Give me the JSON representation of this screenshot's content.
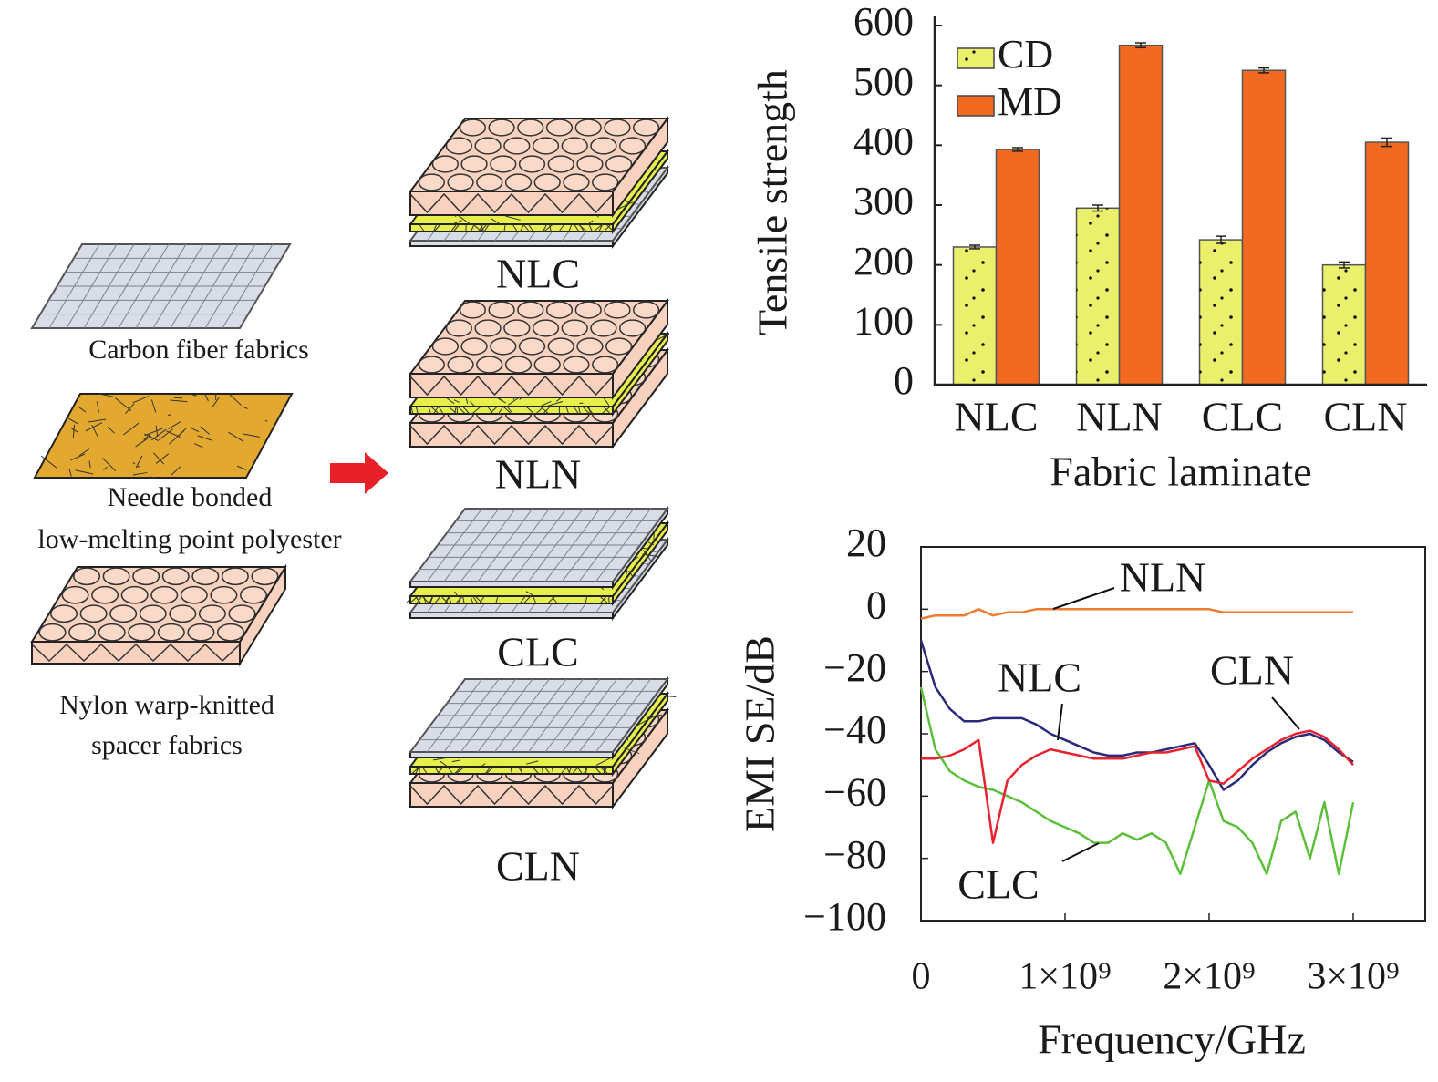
{
  "diagram": {
    "materials": [
      [
        "Carbon fiber fabrics"
      ],
      [
        "Needle bonded",
        "low-melting point polyester"
      ],
      [
        "Nylon warp-knitted",
        "spacer fabrics"
      ]
    ],
    "laminates": [
      "NLC",
      "NLN",
      "CLC",
      "CLN"
    ]
  },
  "chart_data": [
    {
      "type": "bar",
      "y_label": "Tensile strength",
      "x_label": "Fabric laminate",
      "categories": [
        "NLC",
        "NLN",
        "CLC",
        "CLN"
      ],
      "series": [
        {
          "name": "CD",
          "color": "#eaf06c",
          "values": [
            230,
            295,
            242,
            200
          ],
          "errors": [
            3,
            5,
            6,
            5
          ]
        },
        {
          "name": "MD",
          "color": "#f26a21",
          "values": [
            393,
            567,
            525,
            405
          ],
          "errors": [
            3,
            4,
            4,
            7
          ]
        }
      ],
      "ylim": [
        0,
        600
      ],
      "yticks": [
        0,
        100,
        200,
        300,
        400,
        500,
        600
      ],
      "legend": "upper left"
    },
    {
      "type": "line",
      "y_label": "EMI SE/dB",
      "x_label": "Frequency/GHz",
      "x": [
        0,
        100000000,
        200000000,
        300000000,
        400000000,
        500000000,
        600000000,
        700000000,
        800000000,
        900000000,
        1000000000,
        1100000000,
        1200000000,
        1300000000,
        1400000000,
        1500000000,
        1600000000,
        1700000000,
        1800000000,
        1900000000,
        2000000000,
        2100000000,
        2200000000,
        2300000000,
        2400000000,
        2500000000,
        2600000000,
        2700000000,
        2800000000,
        2900000000,
        3000000000
      ],
      "series": [
        {
          "name": "NLN",
          "color": "#f07a30",
          "values": [
            -3,
            -2,
            -2,
            -2,
            0,
            -2,
            -1,
            -1,
            0,
            0,
            0,
            0,
            0,
            0,
            0,
            0,
            0,
            0,
            0,
            0,
            0,
            -1,
            -1,
            -1,
            -1,
            -1,
            -1,
            -1,
            -1,
            -1,
            -1
          ]
        },
        {
          "name": "NLC",
          "color": "#e8222e",
          "values": [
            -48,
            -48,
            -47,
            -45,
            -42,
            -75,
            -55,
            -50,
            -47,
            -45,
            -46,
            -47,
            -48,
            -48,
            -48,
            -47,
            -46,
            -46,
            -45,
            -44,
            -55,
            -56,
            -52,
            -48,
            -45,
            -42,
            -40,
            -39,
            -41,
            -45,
            -50
          ]
        },
        {
          "name": "CLN",
          "color": "#2a2a7a",
          "values": [
            -10,
            -25,
            -32,
            -36,
            -36,
            -35,
            -35,
            -35,
            -37,
            -40,
            -42,
            -44,
            -46,
            -47,
            -47,
            -46,
            -46,
            -45,
            -44,
            -43,
            -50,
            -58,
            -55,
            -50,
            -46,
            -43,
            -41,
            -40,
            -42,
            -46,
            -49
          ]
        },
        {
          "name": "CLC",
          "color": "#5cbf3a",
          "values": [
            -25,
            -45,
            -52,
            -55,
            -57,
            -58,
            -60,
            -62,
            -65,
            -68,
            -70,
            -72,
            -75,
            -75,
            -72,
            -74,
            -72,
            -75,
            -85,
            -70,
            -55,
            -68,
            -70,
            -75,
            -85,
            -68,
            -65,
            -80,
            -62,
            -85,
            -62
          ]
        }
      ],
      "xlim": [
        0,
        3500000000
      ],
      "xticks": [
        0,
        {
          "value": 1000000000,
          "label": "1×10⁹"
        },
        {
          "value": 2000000000,
          "label": "2×10⁹"
        },
        {
          "value": 3000000000,
          "label": "3×10⁹"
        }
      ],
      "ylim": [
        -100,
        20
      ],
      "yticks": [
        {
          "value": -100,
          "label": "−100"
        },
        {
          "value": -80,
          "label": "−80"
        },
        {
          "value": -60,
          "label": "−60"
        },
        {
          "value": -40,
          "label": "−40"
        },
        {
          "value": -20,
          "label": "−20"
        },
        0,
        20
      ],
      "legend": "annotations"
    }
  ]
}
